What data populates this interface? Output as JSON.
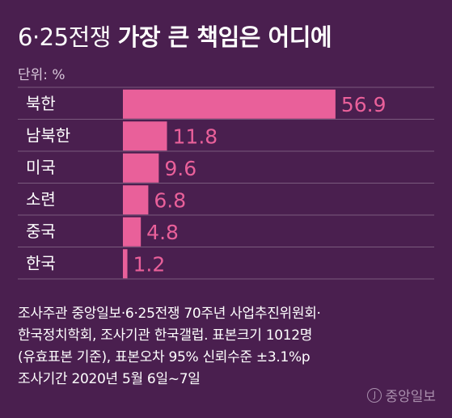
{
  "header": {
    "title_light": "6·25전쟁",
    "title_bold": "가장 큰 책임은 어디에",
    "unit": "단위: %"
  },
  "chart_data": {
    "type": "bar",
    "orientation": "horizontal",
    "title": "6·25전쟁 가장 큰 책임은 어디에",
    "unit": "단위: %",
    "categories": [
      "북한",
      "남북한",
      "미국",
      "소련",
      "중국",
      "한국"
    ],
    "values": [
      56.9,
      11.8,
      9.6,
      6.8,
      4.8,
      1.2
    ],
    "value_labels": [
      "56.9",
      "11.8",
      "9.6",
      "6.8",
      "4.8",
      "1.2"
    ],
    "bar_color": "#e9609a",
    "grid": false,
    "legend": "none"
  },
  "notes": [
    "조사주관  중앙일보·6·25전쟁 70주년 사업추진위원회·",
    "한국정치학회, 조사기관  한국갤럽. 표본크기  1012명",
    "(유효표본  기준), 표본오차  95% 신뢰수준  ±3.1%p",
    "조사기간  2020년  5월  6일~7일"
  ],
  "logo": {
    "mark": "J",
    "text": "중앙일보"
  },
  "colors": {
    "background": "#4a1f4f",
    "accent": "#e9609a"
  }
}
